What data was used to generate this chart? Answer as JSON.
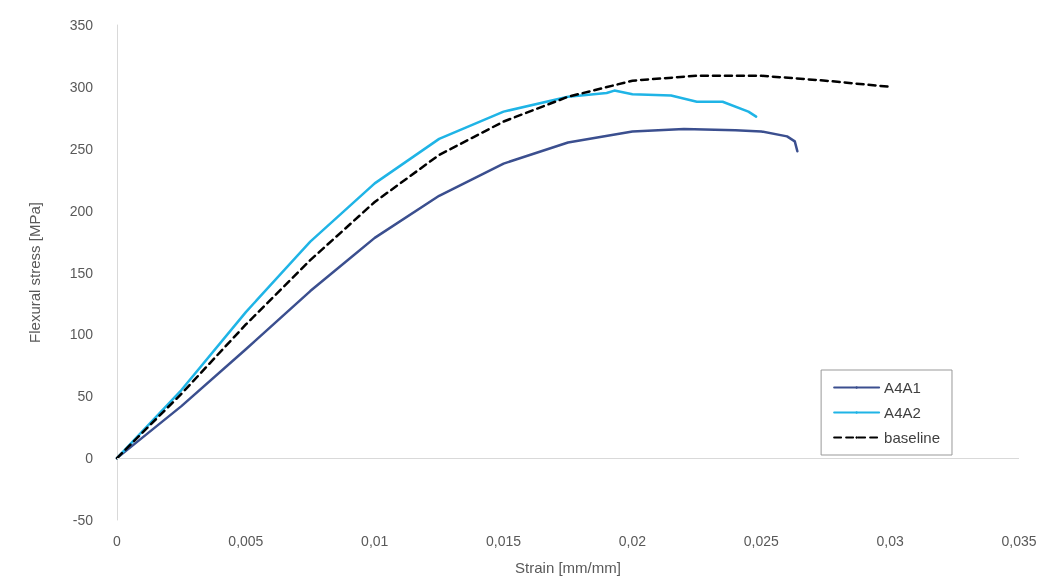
{
  "chart_data": {
    "type": "line",
    "xlabel": "Strain [mm/mm]",
    "ylabel": "Flexural stress [MPa]",
    "xlim": [
      0,
      0.035
    ],
    "xticks": [
      0,
      {
        "value": 0.005,
        "label": "0,005"
      },
      {
        "value": 0.01,
        "label": "0,01"
      },
      {
        "value": 0.015,
        "label": "0,015"
      },
      {
        "value": 0.02,
        "label": "0,02"
      },
      {
        "value": 0.025,
        "label": "0,025"
      },
      {
        "value": 0.03,
        "label": "0,03"
      },
      {
        "value": 0.035,
        "label": "0,035"
      }
    ],
    "ylim": [
      -50,
      350
    ],
    "yticks": [
      -50,
      0,
      50,
      100,
      150,
      200,
      250,
      300,
      350
    ],
    "grid": false,
    "ref_lines": [
      {
        "axis": "y",
        "value": 0,
        "color": "#d9d9d9",
        "line_style": "solid"
      }
    ],
    "legend": "bottom right",
    "marker": "none",
    "series": [
      {
        "name": "A4A1",
        "color": "#3b4f8f",
        "line_style": "solid",
        "x": [
          0,
          0.0025,
          0.005,
          0.0075,
          0.01,
          0.0125,
          0.015,
          0.0175,
          0.02,
          0.022,
          0.024,
          0.025,
          0.026,
          0.0263,
          0.0264
        ],
        "values": [
          0,
          42,
          88,
          135,
          178,
          212,
          238,
          255,
          264,
          266,
          265,
          264,
          260,
          256,
          248
        ]
      },
      {
        "name": "A4A2",
        "color": "#1fb4e6",
        "line_style": "solid",
        "x": [
          0,
          0.0025,
          0.005,
          0.0075,
          0.01,
          0.0125,
          0.015,
          0.0175,
          0.019,
          0.0193,
          0.02,
          0.0215,
          0.0225,
          0.0235,
          0.0245,
          0.0248
        ],
        "values": [
          0,
          55,
          118,
          175,
          222,
          258,
          280,
          292,
          295,
          297,
          294,
          293,
          288,
          288,
          280,
          276
        ]
      },
      {
        "name": "baseline",
        "color": "#000000",
        "line_style": "dashed",
        "x": [
          0,
          0.0025,
          0.005,
          0.0075,
          0.01,
          0.0125,
          0.015,
          0.0175,
          0.02,
          0.0225,
          0.025,
          0.0275,
          0.03
        ],
        "values": [
          0,
          52,
          108,
          160,
          207,
          245,
          272,
          292,
          305,
          309,
          309,
          305,
          300
        ]
      }
    ]
  }
}
